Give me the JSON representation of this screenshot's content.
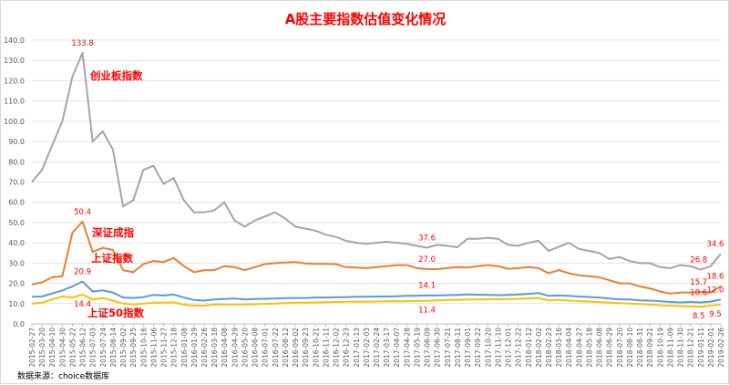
{
  "chart_data": {
    "type": "line",
    "title": "A股主要指数估值变化情况",
    "source": "数据来源：choice数据库",
    "ylim": [
      0,
      140
    ],
    "yticks": [
      "0.0",
      "10.0",
      "20.0",
      "30.0",
      "40.0",
      "50.0",
      "60.0",
      "70.0",
      "80.0",
      "90.0",
      "100.0",
      "110.0",
      "120.0",
      "130.0",
      "140.0"
    ],
    "grid": true,
    "legend": "none (series labeled inline)",
    "x": [
      "2015-02-27",
      "2015-03-20",
      "2015-04-10",
      "2015-04-30",
      "2015-05-22",
      "2015-06-12",
      "2015-07-03",
      "2015-07-24",
      "2015-08-14",
      "2015-09-02",
      "2015-09-25",
      "2015-10-16",
      "2015-11-06",
      "2015-11-27",
      "2015-12-18",
      "2016-01-08",
      "2016-01-29",
      "2016-02-26",
      "2016-03-18",
      "2016-04-08",
      "2016-04-29",
      "2016-05-20",
      "2016-06-08",
      "2016-07-01",
      "2016-07-22",
      "2016-08-12",
      "2016-09-02",
      "2016-09-23",
      "2016-10-21",
      "2016-11-11",
      "2016-12-02",
      "2016-12-23",
      "2017-01-13",
      "2017-02-03",
      "2017-02-24",
      "2017-03-17",
      "2017-04-07",
      "2017-04-28",
      "2017-05-19",
      "2017-06-09",
      "2017-06-30",
      "2017-07-21",
      "2017-08-11",
      "2017-09-01",
      "2017-09-22",
      "2017-10-20",
      "2017-11-10",
      "2017-12-01",
      "2017-12-22",
      "2018-01-12",
      "2018-02-02",
      "2018-02-23",
      "2018-03-16",
      "2018-04-04",
      "2018-04-27",
      "2018-05-18",
      "2018-06-08",
      "2018-06-29",
      "2018-07-20",
      "2018-08-10",
      "2018-08-31",
      "2018-09-21",
      "2018-10-19",
      "2018-11-09",
      "2018-11-30",
      "2018-12-21",
      "2019-01-11",
      "2019-02-01",
      "2019-02-26"
    ],
    "series": [
      {
        "name": "创业板指数",
        "color": "#a5a5a5",
        "values": [
          70,
          76,
          88,
          100,
          122,
          133.8,
          90,
          95,
          86,
          58,
          61,
          76,
          78,
          69,
          72,
          61,
          55,
          55,
          56,
          60,
          51,
          48,
          51,
          53,
          55,
          52,
          48,
          47,
          46,
          44,
          43,
          41,
          40,
          39.5,
          40,
          40.5,
          40,
          39.5,
          38.5,
          37.6,
          39,
          38.5,
          37.8,
          42,
          42,
          42.5,
          42,
          39,
          38.5,
          40,
          41,
          36,
          38,
          40,
          37,
          36,
          35,
          32,
          33,
          31,
          30,
          30,
          28,
          27.5,
          29,
          28.5,
          26.8,
          28.5,
          34.6
        ]
      },
      {
        "name": "深证成指",
        "color": "#ed7d31",
        "values": [
          19.5,
          20.5,
          23,
          23.5,
          45,
          50.4,
          35.5,
          37.5,
          36.5,
          26.5,
          25.5,
          29.5,
          31,
          30.5,
          32.5,
          28.5,
          25.5,
          26.5,
          26.5,
          28.5,
          28,
          26.5,
          28,
          29.5,
          30,
          30.3,
          30.5,
          29.8,
          29.6,
          29.6,
          29.5,
          28,
          27.8,
          27.5,
          28,
          28.5,
          29,
          29,
          27.5,
          27.0,
          27,
          27.5,
          28,
          27.8,
          28.5,
          29,
          28.5,
          27.2,
          27.5,
          28,
          27.5,
          25,
          26.5,
          25,
          24,
          23.5,
          23,
          21.5,
          20,
          20,
          18.5,
          17.5,
          16,
          15,
          15.5,
          15.5,
          15.7,
          15.5,
          18.6
        ]
      },
      {
        "name": "上证指数",
        "color": "#5b9bd5",
        "values": [
          13.4,
          13.5,
          15,
          16.5,
          18.5,
          20.9,
          16,
          16.5,
          15.5,
          13,
          12.8,
          13.2,
          14.3,
          14,
          14.5,
          13,
          11.8,
          11.5,
          12,
          12.3,
          12.5,
          12,
          12.3,
          12.4,
          12.5,
          12.7,
          12.8,
          12.8,
          13,
          13,
          13.2,
          13.2,
          13.4,
          13.4,
          13.5,
          13.5,
          13.6,
          13.8,
          13.9,
          14.1,
          14,
          14.2,
          14.3,
          14.5,
          14.4,
          14.3,
          14.2,
          14.3,
          14.5,
          14.8,
          15.2,
          13.8,
          14,
          13.8,
          13.5,
          13.3,
          13,
          12.5,
          12.1,
          12,
          11.6,
          11.5,
          11.2,
          10.8,
          10.6,
          10.8,
          10.6,
          11,
          12.0
        ]
      },
      {
        "name": "上证50指数",
        "color": "#ffc000",
        "values": [
          10,
          10.5,
          12,
          13.5,
          13,
          14.4,
          12,
          12.8,
          11.5,
          10,
          9.6,
          10,
          10.5,
          10.5,
          10.6,
          9.5,
          9,
          9,
          9.6,
          9.6,
          9.5,
          9.6,
          9.7,
          9.9,
          10,
          10.2,
          10.4,
          10.5,
          10.6,
          10.7,
          10.8,
          10.9,
          11,
          11,
          11,
          11.1,
          11.2,
          11.2,
          11.3,
          11.4,
          11.6,
          11.8,
          11.8,
          12,
          12,
          12.1,
          12.2,
          12.2,
          12.4,
          12.6,
          12.8,
          11.6,
          11.8,
          11.5,
          11.2,
          11,
          10.8,
          10.5,
          10.2,
          10,
          9.8,
          9.5,
          9.2,
          9,
          8.8,
          8.6,
          8.5,
          9,
          9.5
        ]
      }
    ],
    "annotations": [
      {
        "x": "2015-06-12",
        "y": 133.8,
        "text": "133.8",
        "series": 0
      },
      {
        "x": "2015-06-12",
        "y": 50.4,
        "text": "50.4",
        "series": 1
      },
      {
        "x": "2015-06-12",
        "y": 20.9,
        "text": "20.9",
        "series": 2
      },
      {
        "x": "2015-06-12",
        "y": 14.4,
        "text": "14.4",
        "series": 3
      },
      {
        "x": "2017-06-09",
        "y": 37.6,
        "text": "37.6",
        "series": 0
      },
      {
        "x": "2017-06-09",
        "y": 27.0,
        "text": "27.0",
        "series": 1
      },
      {
        "x": "2017-06-09",
        "y": 14.1,
        "text": "14.1",
        "series": 2
      },
      {
        "x": "2017-06-09",
        "y": 11.4,
        "text": "11.4",
        "series": 3
      },
      {
        "x": "2019-01-11",
        "y": 26.8,
        "text": "26.8",
        "series": 0
      },
      {
        "x": "2019-01-11",
        "y": 15.7,
        "text": "15.7",
        "series": 1
      },
      {
        "x": "2019-01-11",
        "y": 10.6,
        "text": "10.6",
        "series": 2
      },
      {
        "x": "2019-01-11",
        "y": 8.5,
        "text": "8.5",
        "series": 3
      },
      {
        "x": "2019-02-26",
        "y": 34.6,
        "text": "34.6",
        "series": 0
      },
      {
        "x": "2019-02-26",
        "y": 18.6,
        "text": "18.6",
        "series": 1
      },
      {
        "x": "2019-02-26",
        "y": 12.0,
        "text": "12.0",
        "series": 2
      },
      {
        "x": "2019-02-26",
        "y": 9.5,
        "text": "9.5",
        "series": 3
      }
    ]
  }
}
